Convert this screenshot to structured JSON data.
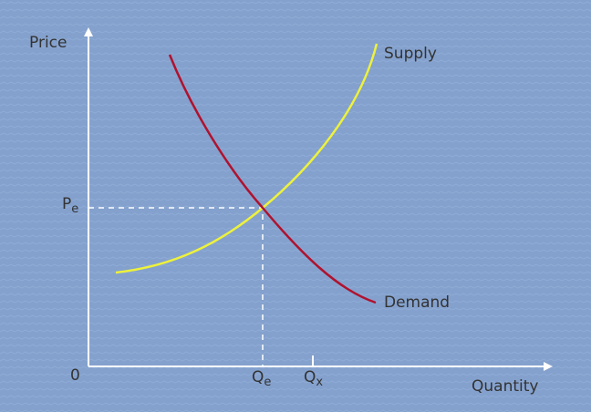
{
  "axes": {
    "y_label": "Price",
    "x_label": "Quantity",
    "origin": "0"
  },
  "markers": {
    "price_eq": {
      "main": "P",
      "sub": "e"
    },
    "quantity_eq": {
      "main": "Q",
      "sub": "e"
    },
    "quantity_x": {
      "main": "Q",
      "sub": "x"
    }
  },
  "curves": {
    "supply": "Supply",
    "demand": "Demand"
  }
}
